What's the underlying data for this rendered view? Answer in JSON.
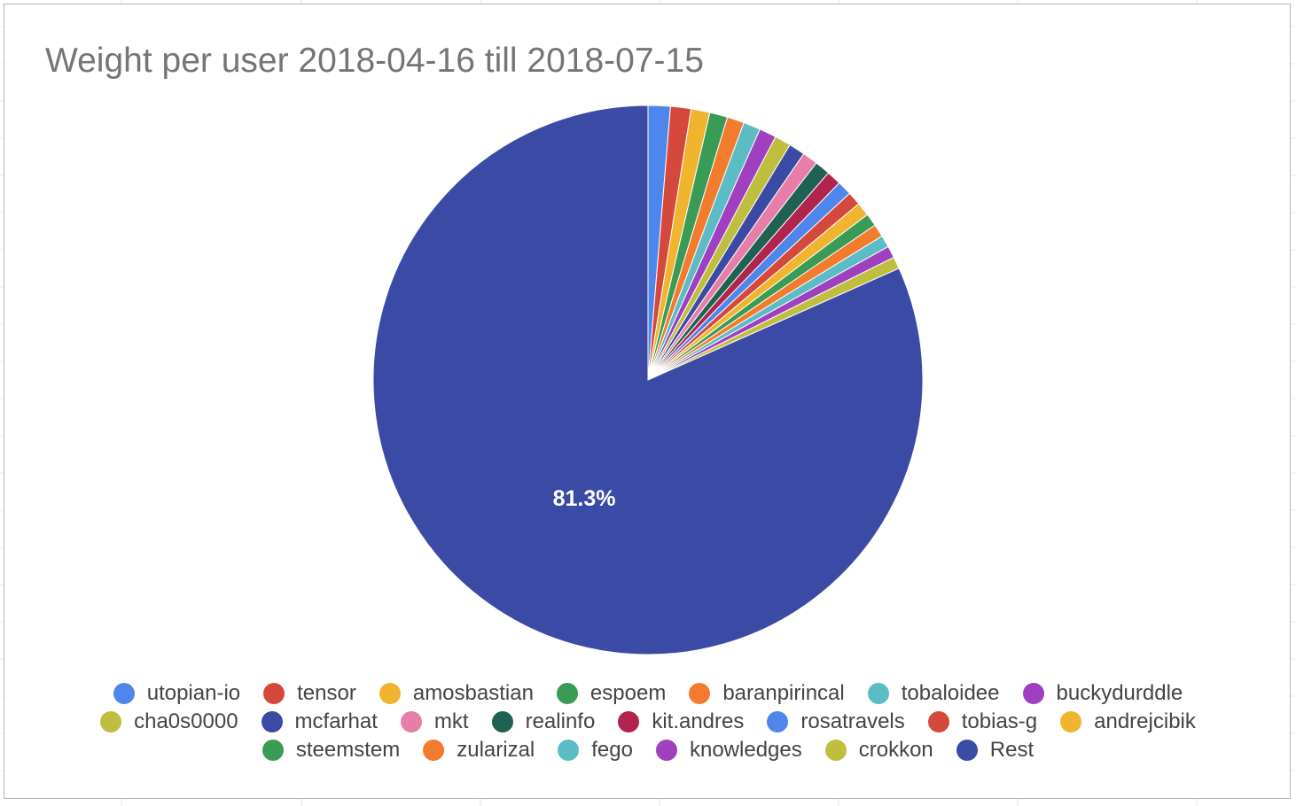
{
  "chart_data": {
    "type": "pie",
    "title": "Weight per user 2018-04-16 till 2018-07-15",
    "legend_position": "bottom",
    "slices": [
      {
        "name": "utopian-io",
        "value": 1.3,
        "color": "#4f86ec"
      },
      {
        "name": "tensor",
        "value": 1.2,
        "color": "#d5493c"
      },
      {
        "name": "amosbastian",
        "value": 1.1,
        "color": "#f1b42f"
      },
      {
        "name": "espoem",
        "value": 1.05,
        "color": "#3a9b55"
      },
      {
        "name": "baranpirincal",
        "value": 1.0,
        "color": "#f37b2e"
      },
      {
        "name": "tobaloidee",
        "value": 1.0,
        "color": "#5bbcc6"
      },
      {
        "name": "buckydurddle",
        "value": 1.0,
        "color": "#9f40c1"
      },
      {
        "name": "cha0s0000",
        "value": 0.95,
        "color": "#c0be3e"
      },
      {
        "name": "mcfarhat",
        "value": 0.95,
        "color": "#3b4aa5"
      },
      {
        "name": "mkt",
        "value": 0.9,
        "color": "#e67ea7"
      },
      {
        "name": "realinfo",
        "value": 0.9,
        "color": "#1f6253"
      },
      {
        "name": "kit.andres",
        "value": 0.85,
        "color": "#b0244d"
      },
      {
        "name": "rosatravels",
        "value": 0.85,
        "color": "#4f86ec"
      },
      {
        "name": "tobias-g",
        "value": 0.8,
        "color": "#d5493c"
      },
      {
        "name": "andrejcibik",
        "value": 0.8,
        "color": "#f1b42f"
      },
      {
        "name": "steemstem",
        "value": 0.75,
        "color": "#3a9b55"
      },
      {
        "name": "zularizal",
        "value": 0.75,
        "color": "#f37b2e"
      },
      {
        "name": "fego",
        "value": 0.7,
        "color": "#5bbcc6"
      },
      {
        "name": "knowledges",
        "value": 0.7,
        "color": "#9f40c1"
      },
      {
        "name": "crokkon",
        "value": 0.7,
        "color": "#c0be3e"
      },
      {
        "name": "Rest",
        "value": 81.3,
        "color": "#3b4aa5",
        "label": "81.3%"
      }
    ]
  }
}
